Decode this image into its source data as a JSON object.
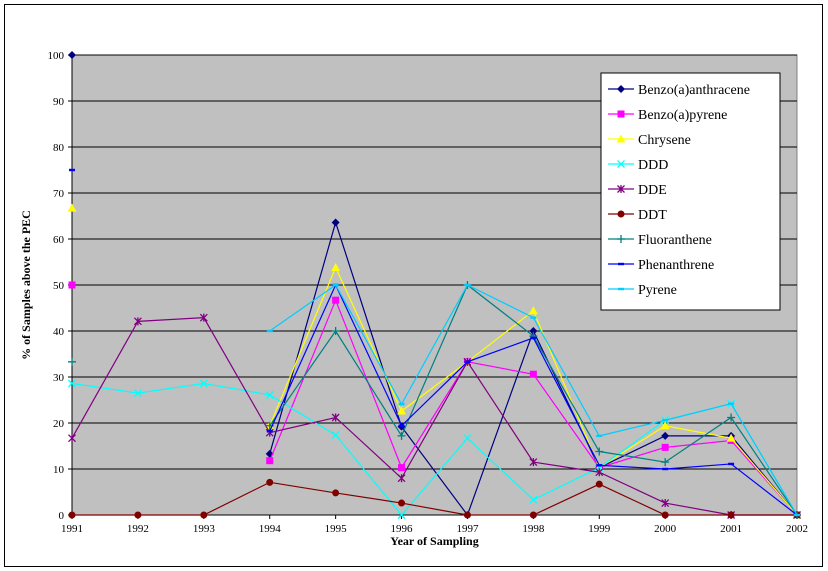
{
  "chart_data": {
    "type": "line",
    "xlabel": "Year of Sampling",
    "ylabel": "% of Samples above the PEC",
    "ylim": [
      0,
      100
    ],
    "yticks": [
      0,
      10,
      20,
      30,
      40,
      50,
      60,
      70,
      80,
      90,
      100
    ],
    "x": [
      "1991",
      "1992",
      "1993",
      "1994",
      "1995",
      "1996",
      "1997",
      "1998",
      "1999",
      "2000",
      "2001",
      "2002"
    ],
    "grid": true,
    "legend_position": "right",
    "series": [
      {
        "name": "Benzo(a)anthracene",
        "color": "#000080",
        "marker": "diamond",
        "values": [
          100,
          null,
          null,
          13.3,
          63.6,
          19.2,
          0,
          40,
          10.3,
          17.2,
          17.2,
          0
        ]
      },
      {
        "name": "Benzo(a)pyrene",
        "color": "#ff00ff",
        "marker": "square",
        "values": [
          50,
          null,
          null,
          11.8,
          46.7,
          10.3,
          33.3,
          30.6,
          10.3,
          14.7,
          16.2,
          0
        ]
      },
      {
        "name": "Chrysene",
        "color": "#ffff00",
        "marker": "triangle",
        "values": [
          66.7,
          null,
          null,
          19.4,
          53.8,
          22.6,
          33.3,
          44.4,
          10.3,
          19.4,
          16.7,
          0
        ]
      },
      {
        "name": "DDD",
        "color": "#00ffff",
        "marker": "x",
        "values": [
          28.6,
          26.5,
          28.6,
          26.1,
          17.4,
          0,
          16.7,
          3.3,
          10.3,
          20.6,
          24.2,
          0
        ]
      },
      {
        "name": "DDE",
        "color": "#800080",
        "marker": "star",
        "values": [
          16.7,
          42.1,
          42.9,
          17.9,
          21.2,
          8,
          33.3,
          11.5,
          9.3,
          2.6,
          0,
          0
        ]
      },
      {
        "name": "DDT",
        "color": "#800000",
        "marker": "circle",
        "values": [
          0,
          0,
          0,
          7.1,
          4.8,
          2.6,
          0,
          0,
          6.7,
          0,
          0,
          0
        ]
      },
      {
        "name": "Fluoranthene",
        "color": "#008080",
        "marker": "plus",
        "values": [
          33.3,
          null,
          null,
          19.4,
          40,
          17.2,
          50,
          38.9,
          13.8,
          11.5,
          21.2,
          0
        ]
      },
      {
        "name": "Phenanthrene",
        "color": "#0000ff",
        "marker": "dash",
        "values": [
          75,
          null,
          null,
          18.2,
          50,
          19.4,
          33.3,
          38.5,
          10.8,
          10,
          11.1,
          0
        ]
      },
      {
        "name": "Pyrene",
        "color": "#00ccff",
        "marker": "dash",
        "values": [
          null,
          null,
          null,
          40,
          50,
          24.1,
          50,
          42.9,
          17.2,
          20.6,
          24.2,
          0
        ]
      }
    ]
  }
}
